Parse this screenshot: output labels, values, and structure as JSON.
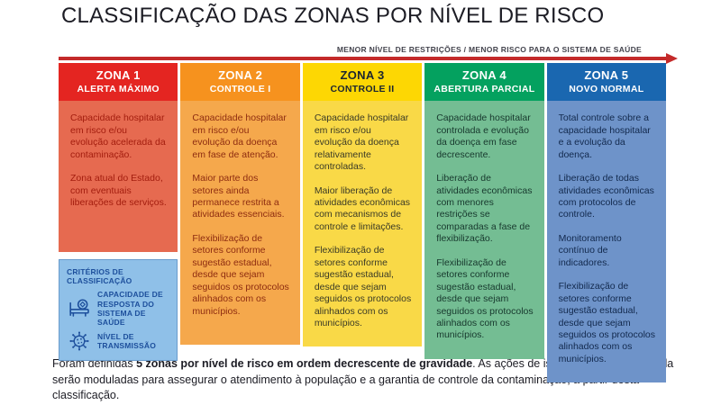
{
  "title": "CLASSIFICAÇÃO DAS ZONAS POR NÍVEL DE RISCO",
  "arrow": {
    "label": "MENOR NÍVEL DE RESTRIÇÕES / MENOR RISCO PARA O SISTEMA DE SAÚDE",
    "color": "#c42a2a"
  },
  "zones": [
    {
      "name": "ZONA 1",
      "subtitle": "ALERTA MÁXIMO",
      "colors": {
        "header_bg": "#e42521",
        "header_text": "#ffffff",
        "body_bg": "#e66a50",
        "body_text": "#a31d0e"
      },
      "paragraphs": [
        "Capacidade hospitalar em risco e/ou evolução acelerada da contaminação.",
        "Zona atual do Estado, com eventuais liberações de serviços."
      ]
    },
    {
      "name": "ZONA 2",
      "subtitle": "CONTROLE I",
      "colors": {
        "header_bg": "#f6921e",
        "header_text": "#ffffff",
        "body_bg": "#f5a84c",
        "body_text": "#8e2c10"
      },
      "paragraphs": [
        "Capacidade hospitalar em risco e/ou evolução da doença em fase de atenção.",
        "Maior parte dos setores ainda permanece restrita a atividades essenciais.",
        "Flexibilização de setores conforme sugestão estadual, desde que sejam seguidos os protocolos alinhados com os municípios."
      ]
    },
    {
      "name": "ZONA 3",
      "subtitle": "CONTROLE II",
      "colors": {
        "header_bg": "#fdd703",
        "header_text": "#1b2531",
        "body_bg": "#f9d947",
        "body_text": "#3a3a26"
      },
      "paragraphs": [
        "Capacidade hospitalar em risco e/ou evolução da doença relativamente controladas.",
        "Maior liberação de atividades econômicas com mecanismos de controle e limitações.",
        "Flexibilização de setores conforme sugestão estadual, desde que sejam seguidos os protocolos alinhados com os municípios."
      ]
    },
    {
      "name": "ZONA 4",
      "subtitle": "ABERTURA PARCIAL",
      "colors": {
        "header_bg": "#04a15f",
        "header_text": "#ffffff",
        "body_bg": "#74bd93",
        "body_text": "#17382d"
      },
      "paragraphs": [
        "Capacidade hospitalar controlada e evolução da doença em fase decrescente.",
        "Liberação de atividades econômicas com menores restrições se comparadas a fase de flexibilização.",
        "Flexibilização de setores conforme sugestão estadual, desde que sejam seguidos os protocolos alinhados com os municípios."
      ]
    },
    {
      "name": "ZONA 5",
      "subtitle": "NOVO NORMAL",
      "colors": {
        "header_bg": "#1a67b0",
        "header_text": "#ffffff",
        "body_bg": "#6e93c9",
        "body_text": "#12294d"
      },
      "paragraphs": [
        "Total controle sobre a capacidade hospitalar e a evolução da doença.",
        "Liberação de todas atividades econômicas com protocolos de controle.",
        "Monitoramento contínuo de indicadores.",
        "Flexibilização de setores conforme sugestão estadual, desde que sejam seguidos os protocolos alinhados com os municípios."
      ]
    }
  ],
  "criteria": {
    "title": "CRITÉRIOS DE CLASSIFICAÇÃO",
    "bg": "#8fc0e8",
    "accent": "#1d4f9c",
    "items": [
      {
        "icon": "hospital-bed-icon",
        "label": "CAPACIDADE DE RESPOSTA DO SISTEMA DE SAÚDE"
      },
      {
        "icon": "virus-icon",
        "label": "NÍVEL DE TRANSMISSÃO"
      }
    ]
  },
  "footer": {
    "prefix": "Foram definidas ",
    "bold": "5 zonas por nível de risco em ordem decrescente de gravidade",
    "suffix": ". As ações de isolamento e de retomada serão moduladas para assegurar o atendimento à população e a garantia de controle da contaminação, a partir desta classificação."
  }
}
